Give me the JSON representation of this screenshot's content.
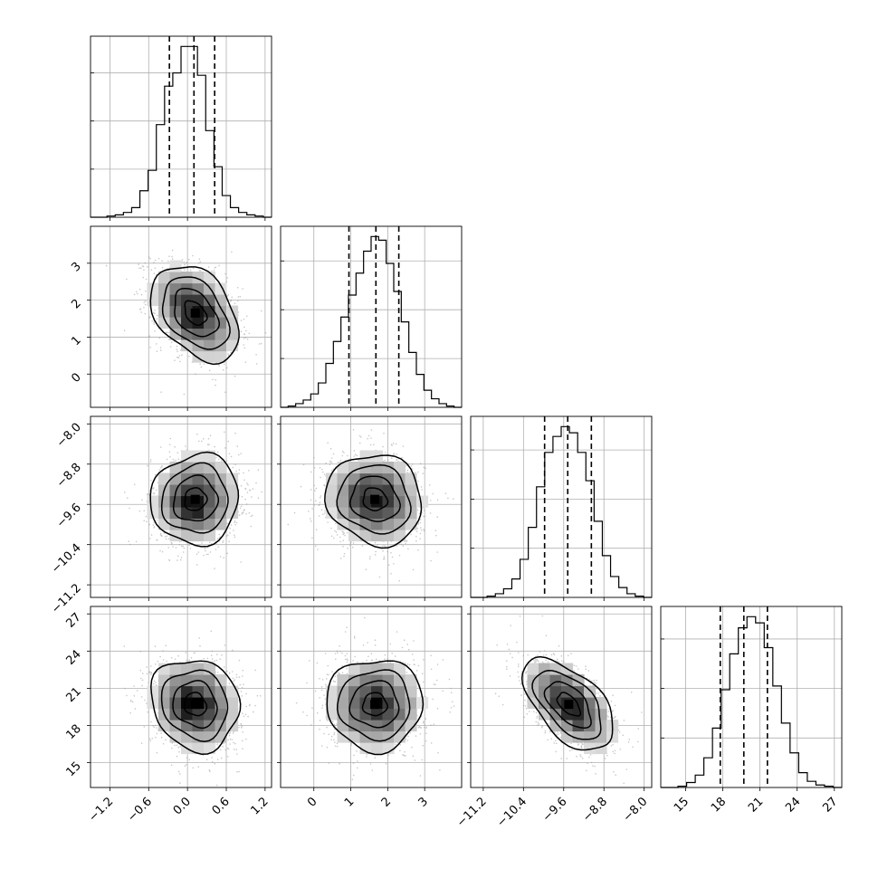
{
  "chart_data": {
    "type": "corner",
    "parameters": [
      {
        "index": 0,
        "range": [
          -1.5,
          1.3
        ],
        "ticks": [
          -1.2,
          -0.6,
          0.0,
          0.6,
          1.2
        ],
        "tick_labels": [
          "−1.2",
          "−0.6",
          "0.0",
          "0.6",
          "1.2"
        ],
        "quantiles": [
          -0.28,
          0.1,
          0.42
        ],
        "center": 0.12,
        "spread": 0.34
      },
      {
        "index": 1,
        "range": [
          -0.9,
          4.0
        ],
        "ticks": [
          0,
          1,
          2,
          3
        ],
        "tick_labels": [
          "0",
          "1",
          "2",
          "3"
        ],
        "quantiles": [
          0.95,
          1.68,
          2.3
        ],
        "center": 1.65,
        "spread": 0.65
      },
      {
        "index": 2,
        "range": [
          -11.45,
          -7.85
        ],
        "ticks": [
          -11.2,
          -10.4,
          -9.6,
          -8.8,
          -8.0
        ],
        "tick_labels": [
          "−11.2",
          "−10.4",
          "−9.6",
          "−8.8",
          "−8.0"
        ],
        "quantiles": [
          -9.98,
          -9.52,
          -9.05
        ],
        "center": -9.5,
        "spread": 0.45
      },
      {
        "index": 3,
        "range": [
          13.0,
          27.6
        ],
        "ticks": [
          15,
          18,
          21,
          24,
          27
        ],
        "tick_labels": [
          "15",
          "18",
          "21",
          "24",
          "27"
        ],
        "quantiles": [
          17.8,
          19.7,
          21.6
        ],
        "center": 19.7,
        "spread": 1.85
      }
    ],
    "histograms": [
      {
        "param": 0,
        "bin_edges_range": [
          -1.5,
          1.3
        ],
        "counts": [
          0,
          0,
          1,
          2,
          4,
          8,
          22,
          39,
          77,
          109,
          120,
          142,
          142,
          118,
          72,
          42,
          18,
          8,
          4,
          2,
          1,
          0
        ]
      },
      {
        "param": 1,
        "bin_edges_range": [
          -0.9,
          4.0
        ],
        "counts": [
          0,
          1,
          3,
          6,
          11,
          20,
          36,
          54,
          74,
          92,
          110,
          128,
          140,
          137,
          118,
          95,
          70,
          45,
          27,
          14,
          7,
          3,
          1,
          0
        ]
      },
      {
        "param": 2,
        "bin_edges_range": [
          -11.45,
          -7.85
        ],
        "counts": [
          0,
          0,
          1,
          3,
          7,
          15,
          31,
          57,
          90,
          118,
          131,
          139,
          134,
          118,
          95,
          62,
          34,
          17,
          8,
          3,
          1,
          0
        ]
      },
      {
        "param": 3,
        "bin_edges_range": [
          13.0,
          27.6
        ],
        "counts": [
          0,
          0,
          1,
          4,
          10,
          24,
          48,
          79,
          108,
          129,
          138,
          133,
          113,
          82,
          52,
          28,
          12,
          5,
          2,
          1,
          0
        ]
      }
    ],
    "correlations": [
      {
        "pair": [
          0,
          1
        ],
        "rho": -0.38
      },
      {
        "pair": [
          0,
          2
        ],
        "rho": 0.05
      },
      {
        "pair": [
          1,
          2
        ],
        "rho": -0.1
      },
      {
        "pair": [
          0,
          3
        ],
        "rho": -0.12
      },
      {
        "pair": [
          1,
          3
        ],
        "rho": 0.0
      },
      {
        "pair": [
          2,
          3
        ],
        "rho": -0.55
      }
    ],
    "contour_levels_sigma": [
      0.5,
      1.0,
      1.5,
      2.0
    ],
    "grid": true,
    "colors": {
      "line": "#000000",
      "grid": "#b0b0b0",
      "points": "#9a9a9a"
    }
  }
}
